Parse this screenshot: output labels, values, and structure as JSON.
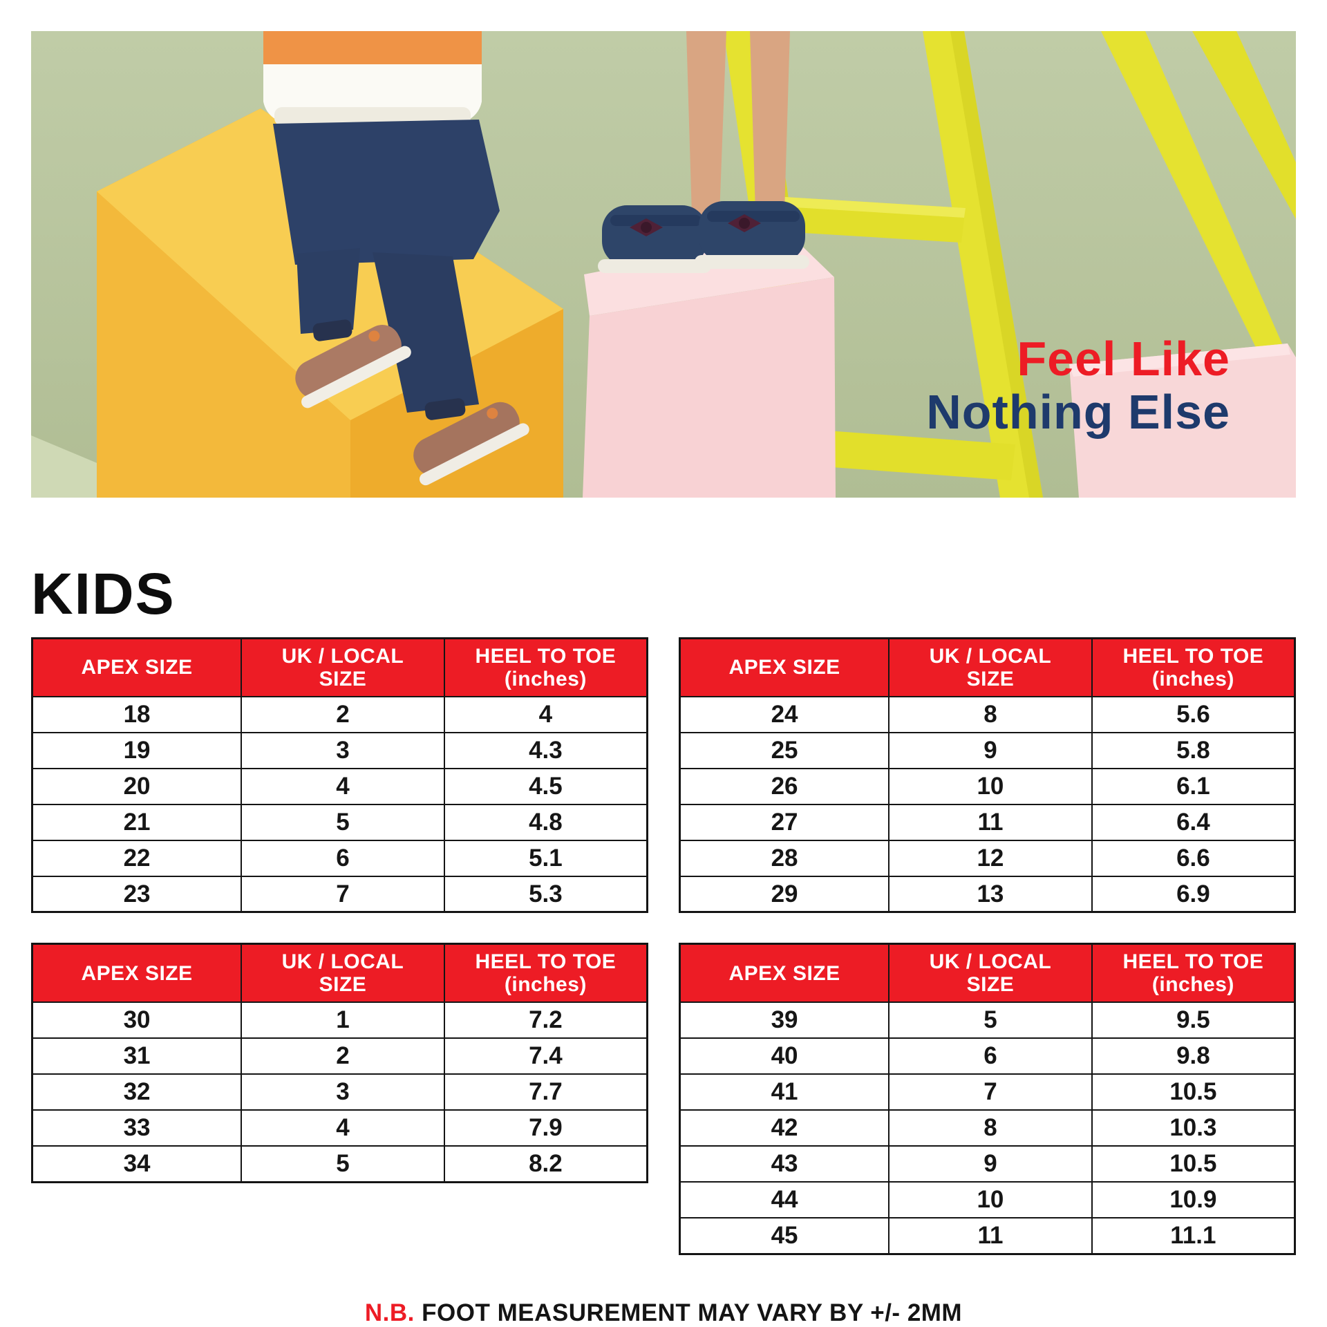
{
  "banner": {
    "headline": {
      "line1": "Feel Like",
      "line2": "Nothing Else"
    },
    "colors": {
      "headline_line1": "#ed1c25",
      "headline_line2": "#1e3a6c",
      "background_green": "#b9c6a0",
      "yellow_box": "#f2b434",
      "pink_box": "#f8d2d4",
      "ladder_yellow": "#e5e230"
    },
    "scene_description": "Two children's lower bodies: one sitting on a yellow box in jeans and brown shoes, one standing on a pink box in navy mary-jane shoes, beside a yellow ladder on a green background"
  },
  "section_title": "KIDS",
  "tables": {
    "header_columns": [
      {
        "line1": "APEX SIZE",
        "line2": ""
      },
      {
        "line1": "UK / LOCAL",
        "line2": "SIZE"
      },
      {
        "line1": "HEEL TO TOE",
        "line2": "(inches)"
      }
    ],
    "header_bg": "#ed1c25",
    "groups": [
      {
        "id": "kids-18-23",
        "rows": [
          [
            "18",
            "2",
            "4"
          ],
          [
            "19",
            "3",
            "4.3"
          ],
          [
            "20",
            "4",
            "4.5"
          ],
          [
            "21",
            "5",
            "4.8"
          ],
          [
            "22",
            "6",
            "5.1"
          ],
          [
            "23",
            "7",
            "5.3"
          ]
        ]
      },
      {
        "id": "kids-24-29",
        "rows": [
          [
            "24",
            "8",
            "5.6"
          ],
          [
            "25",
            "9",
            "5.8"
          ],
          [
            "26",
            "10",
            "6.1"
          ],
          [
            "27",
            "11",
            "6.4"
          ],
          [
            "28",
            "12",
            "6.6"
          ],
          [
            "29",
            "13",
            "6.9"
          ]
        ]
      },
      {
        "id": "kids-30-34",
        "rows": [
          [
            "30",
            "1",
            "7.2"
          ],
          [
            "31",
            "2",
            "7.4"
          ],
          [
            "32",
            "3",
            "7.7"
          ],
          [
            "33",
            "4",
            "7.9"
          ],
          [
            "34",
            "5",
            "8.2"
          ]
        ]
      },
      {
        "id": "kids-39-45",
        "rows": [
          [
            "39",
            "5",
            "9.5"
          ],
          [
            "40",
            "6",
            "9.8"
          ],
          [
            "41",
            "7",
            "10.5"
          ],
          [
            "42",
            "8",
            "10.3"
          ],
          [
            "43",
            "9",
            "10.5"
          ],
          [
            "44",
            "10",
            "10.9"
          ],
          [
            "45",
            "11",
            "11.1"
          ]
        ]
      }
    ]
  },
  "note": {
    "prefix": "N.B.",
    "text": "FOOT MEASUREMENT MAY VARY BY +/- 2MM",
    "prefix_color": "#ed1c25"
  }
}
